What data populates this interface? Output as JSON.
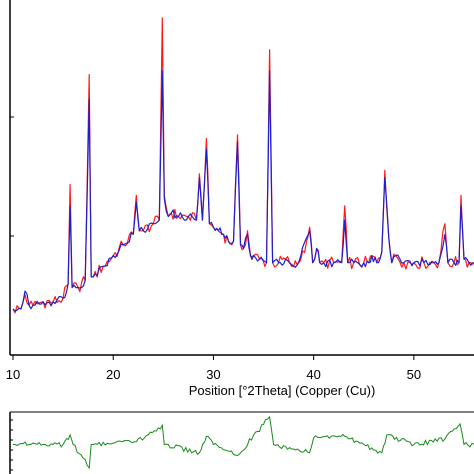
{
  "chart_data": [
    {
      "type": "line",
      "xlabel": "Position [°2Theta] (Copper (Cu))",
      "xlim": [
        10,
        56
      ],
      "xticks": [
        10,
        20,
        30,
        40,
        50
      ],
      "ylim": [
        0,
        1
      ],
      "yticks_visible": false,
      "series": [
        {
          "color": "#ff1a1a",
          "x": [
            10,
            10.8,
            11.2,
            11.6,
            12,
            13,
            14,
            15,
            15.5,
            15.7,
            15.9,
            16.5,
            17.2,
            17.6,
            17.8,
            18,
            19,
            20,
            21,
            22,
            22.3,
            22.6,
            23,
            24,
            24.6,
            24.9,
            25.1,
            25.5,
            25.8,
            26.5,
            27.5,
            28.3,
            28.6,
            28.9,
            29.3,
            29.6,
            30,
            30.5,
            31,
            31.5,
            32,
            32.4,
            32.7,
            33,
            33.4,
            33.7,
            34,
            34.6,
            35.3,
            35.6,
            35.9,
            36.5,
            37.2,
            37.6,
            38,
            38.5,
            39.3,
            39.6,
            39.9,
            40.3,
            40.6,
            41,
            42,
            42.8,
            43.1,
            43.4,
            44,
            45,
            45.5,
            45.8,
            46.3,
            46.8,
            47.1,
            47.5,
            47.8,
            48.2,
            49,
            50,
            51,
            52,
            52.5,
            53.1,
            53.4,
            54,
            54.5,
            54.7,
            55,
            55.5,
            56
          ],
          "values": [
            0.13,
            0.13,
            0.17,
            0.14,
            0.14,
            0.15,
            0.15,
            0.16,
            0.2,
            0.48,
            0.19,
            0.19,
            0.21,
            0.79,
            0.22,
            0.22,
            0.25,
            0.28,
            0.31,
            0.34,
            0.45,
            0.35,
            0.35,
            0.37,
            0.38,
            0.95,
            0.45,
            0.39,
            0.4,
            0.39,
            0.39,
            0.38,
            0.51,
            0.38,
            0.61,
            0.37,
            0.36,
            0.35,
            0.34,
            0.32,
            0.32,
            0.62,
            0.31,
            0.3,
            0.35,
            0.28,
            0.28,
            0.27,
            0.26,
            0.86,
            0.26,
            0.26,
            0.27,
            0.26,
            0.25,
            0.26,
            0.32,
            0.36,
            0.26,
            0.3,
            0.26,
            0.26,
            0.26,
            0.26,
            0.42,
            0.26,
            0.26,
            0.26,
            0.26,
            0.28,
            0.26,
            0.29,
            0.52,
            0.33,
            0.26,
            0.28,
            0.26,
            0.26,
            0.26,
            0.26,
            0.26,
            0.37,
            0.26,
            0.26,
            0.26,
            0.45,
            0.27,
            0.26,
            0.26
          ]
        },
        {
          "color": "#1f1fcc",
          "x": [
            10,
            10.8,
            11.2,
            11.6,
            12,
            13,
            14,
            15,
            15.5,
            15.7,
            15.9,
            16.5,
            17.2,
            17.6,
            17.8,
            18,
            19,
            20,
            21,
            22,
            22.3,
            22.6,
            23,
            24,
            24.6,
            24.9,
            25.1,
            25.5,
            25.8,
            26.5,
            27.5,
            28.3,
            28.6,
            28.9,
            29.3,
            29.6,
            30,
            30.5,
            31,
            31.5,
            32,
            32.4,
            32.7,
            33,
            33.4,
            33.7,
            34,
            34.6,
            35.3,
            35.6,
            35.9,
            36.5,
            37.2,
            37.6,
            38,
            38.5,
            39.3,
            39.6,
            39.9,
            40.3,
            40.6,
            41,
            42,
            42.8,
            43.1,
            43.4,
            44,
            45,
            45.5,
            45.8,
            46.3,
            46.8,
            47.1,
            47.5,
            47.8,
            48.2,
            49,
            50,
            51,
            52,
            52.5,
            53.1,
            53.4,
            54,
            54.5,
            54.7,
            55,
            55.5,
            56
          ],
          "values": [
            0.13,
            0.13,
            0.18,
            0.14,
            0.14,
            0.15,
            0.15,
            0.16,
            0.2,
            0.42,
            0.19,
            0.19,
            0.21,
            0.72,
            0.22,
            0.22,
            0.25,
            0.28,
            0.31,
            0.34,
            0.43,
            0.35,
            0.35,
            0.37,
            0.38,
            0.8,
            0.44,
            0.39,
            0.4,
            0.39,
            0.39,
            0.38,
            0.5,
            0.38,
            0.58,
            0.37,
            0.36,
            0.35,
            0.34,
            0.32,
            0.32,
            0.6,
            0.31,
            0.3,
            0.34,
            0.28,
            0.28,
            0.27,
            0.26,
            0.8,
            0.26,
            0.26,
            0.27,
            0.26,
            0.25,
            0.26,
            0.33,
            0.35,
            0.26,
            0.3,
            0.26,
            0.26,
            0.26,
            0.26,
            0.38,
            0.26,
            0.26,
            0.26,
            0.26,
            0.28,
            0.26,
            0.29,
            0.5,
            0.33,
            0.26,
            0.28,
            0.26,
            0.26,
            0.26,
            0.26,
            0.26,
            0.34,
            0.26,
            0.26,
            0.26,
            0.42,
            0.27,
            0.26,
            0.26
          ]
        }
      ]
    },
    {
      "type": "line",
      "xlim": [
        10,
        56
      ],
      "ylim": [
        -1,
        1
      ],
      "series": [
        {
          "color": "#1a8a1a",
          "x": [
            10,
            12,
            15,
            15.7,
            16,
            17.6,
            17.8,
            18,
            20,
            22.3,
            24.9,
            25.1,
            28.6,
            29.3,
            30,
            32.4,
            35.6,
            36,
            39.6,
            40,
            43.1,
            45,
            46.8,
            47.3,
            50,
            53.1,
            54.6,
            55,
            56
          ],
          "values": [
            0,
            0.05,
            0,
            0.35,
            0,
            -0.85,
            0,
            0,
            0.05,
            0.1,
            0.7,
            0,
            -0.3,
            0.3,
            0,
            -0.4,
            1.0,
            0,
            -0.3,
            0.25,
            0.3,
            0,
            -0.3,
            0.35,
            0,
            0.2,
            0.75,
            0,
            0
          ]
        }
      ]
    }
  ]
}
